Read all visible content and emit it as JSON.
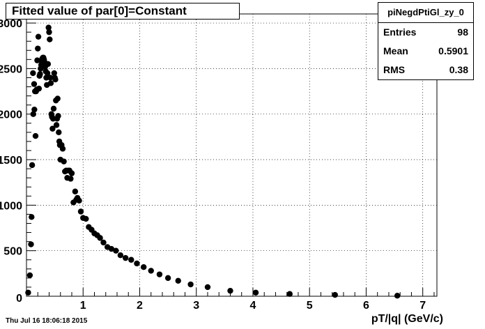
{
  "chart_data": {
    "type": "scatter",
    "title": "Fitted value of par[0]=Constant",
    "xlabel": "pT/|q| (GeV/c)",
    "ylabel": "",
    "xlim": [
      0,
      7.25
    ],
    "ylim": [
      0,
      3100
    ],
    "xticks": [
      1,
      2,
      3,
      4,
      5,
      6,
      7
    ],
    "yticks": [
      500,
      1000,
      1500,
      2000,
      2500,
      3000
    ],
    "grid": true,
    "stats": {
      "name": "piNegdPtiGl_zy_0",
      "entries_label": "Entries",
      "entries": "98",
      "mean_label": "Mean",
      "mean": "0.5901",
      "rms_label": "RMS",
      "rms": "0.38"
    },
    "series": [
      {
        "points": [
          [
            0.03,
            40
          ],
          [
            0.06,
            230
          ],
          [
            0.08,
            570
          ],
          [
            0.09,
            870
          ],
          [
            0.1,
            1440
          ],
          [
            0.12,
            2000
          ],
          [
            0.14,
            2050
          ],
          [
            0.15,
            2250
          ],
          [
            0.16,
            1760
          ],
          [
            0.17,
            2250
          ],
          [
            0.18,
            2270
          ],
          [
            0.19,
            2590
          ],
          [
            0.2,
            2720
          ],
          [
            0.21,
            2850
          ],
          [
            0.22,
            2280
          ],
          [
            0.23,
            2420
          ],
          [
            0.24,
            2440
          ],
          [
            0.25,
            2500
          ],
          [
            0.26,
            2540
          ],
          [
            0.27,
            2580
          ],
          [
            0.28,
            2610
          ],
          [
            0.29,
            2620
          ],
          [
            0.3,
            2620
          ],
          [
            0.31,
            2600
          ],
          [
            0.32,
            2570
          ],
          [
            0.33,
            2520
          ],
          [
            0.34,
            2470
          ],
          [
            0.35,
            2400
          ],
          [
            0.36,
            2320
          ],
          [
            0.37,
            2450
          ],
          [
            0.38,
            2550
          ],
          [
            0.39,
            2950
          ],
          [
            0.4,
            2900
          ],
          [
            0.41,
            2820
          ],
          [
            0.42,
            2400
          ],
          [
            0.43,
            2340
          ],
          [
            0.44,
            2000
          ],
          [
            0.45,
            1970
          ],
          [
            0.46,
            1840
          ],
          [
            0.47,
            1950
          ],
          [
            0.48,
            2060
          ],
          [
            0.49,
            2450
          ],
          [
            0.5,
            2400
          ],
          [
            0.51,
            2380
          ],
          [
            0.52,
            2150
          ],
          [
            0.53,
            1880
          ],
          [
            0.54,
            1950
          ],
          [
            0.55,
            2170
          ],
          [
            0.56,
            1980
          ],
          [
            0.57,
            1800
          ],
          [
            0.58,
            1700
          ],
          [
            0.59,
            1660
          ],
          [
            0.6,
            1500
          ],
          [
            0.62,
            1660
          ],
          [
            0.64,
            1620
          ],
          [
            0.66,
            1480
          ],
          [
            0.68,
            1370
          ],
          [
            0.7,
            1380
          ],
          [
            0.72,
            1300
          ],
          [
            0.74,
            1380
          ],
          [
            0.76,
            1380
          ],
          [
            0.78,
            1290
          ],
          [
            0.8,
            1350
          ],
          [
            0.83,
            1030
          ],
          [
            0.86,
            1150
          ],
          [
            0.88,
            1060
          ],
          [
            0.9,
            1080
          ],
          [
            0.93,
            1050
          ],
          [
            0.96,
            930
          ],
          [
            1.0,
            860
          ],
          [
            1.05,
            850
          ],
          [
            1.1,
            760
          ],
          [
            1.15,
            730
          ],
          [
            1.2,
            690
          ],
          [
            1.25,
            670
          ],
          [
            1.3,
            640
          ],
          [
            1.36,
            590
          ],
          [
            1.43,
            540
          ],
          [
            1.5,
            520
          ],
          [
            1.58,
            500
          ],
          [
            1.66,
            450
          ],
          [
            1.75,
            420
          ],
          [
            1.85,
            400
          ],
          [
            1.95,
            360
          ],
          [
            2.07,
            320
          ],
          [
            2.2,
            280
          ],
          [
            2.35,
            240
          ],
          [
            2.5,
            200
          ],
          [
            2.68,
            170
          ],
          [
            2.9,
            130
          ],
          [
            3.2,
            100
          ],
          [
            3.6,
            60
          ],
          [
            4.05,
            40
          ],
          [
            4.65,
            25
          ],
          [
            5.45,
            15
          ],
          [
            6.55,
            6
          ],
          [
            0.115,
            2450
          ],
          [
            0.135,
            2330
          ]
        ]
      }
    ]
  },
  "footer": {
    "timestamp": "Thu Jul 16 18:06:18 2015"
  }
}
